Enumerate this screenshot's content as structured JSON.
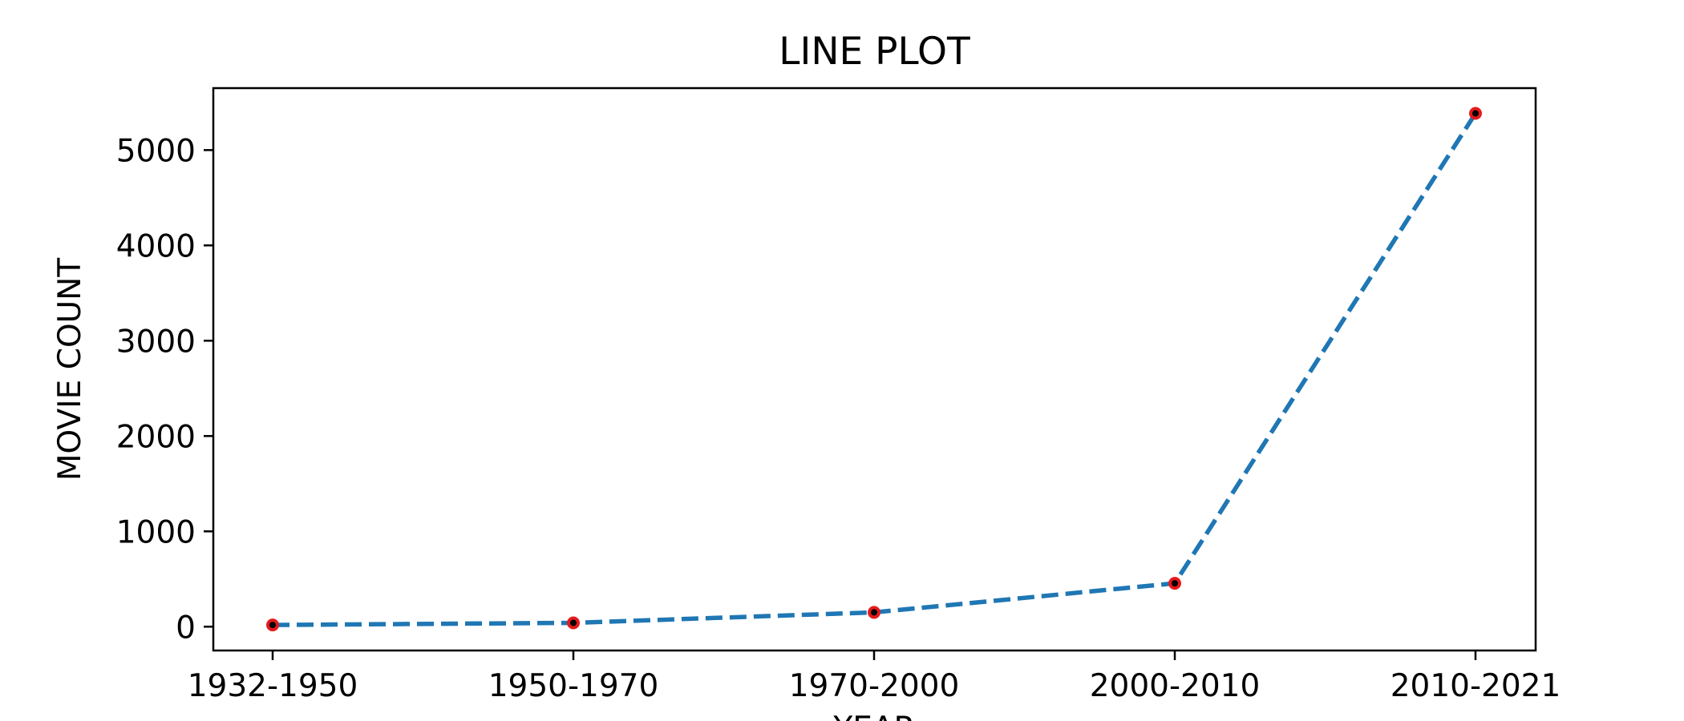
{
  "chart_data": {
    "type": "line",
    "title": "LINE PLOT",
    "xlabel": "YEAR",
    "ylabel": "MOVIE COUNT",
    "categories": [
      "1932-1950",
      "1950-1970",
      "1970-2000",
      "2000-2010",
      "2010-2021"
    ],
    "series": [
      {
        "values": [
          18,
          40,
          150,
          455,
          5385
        ],
        "color": "#1f77b4",
        "line_style": "dashed",
        "marker": "dot",
        "marker_face": "#000000",
        "marker_edge": "#e41a1c"
      }
    ],
    "ylim": [
      -250,
      5650
    ],
    "yticks": [
      0,
      1000,
      2000,
      3000,
      4000,
      5000
    ],
    "grid": false,
    "legend": false
  }
}
